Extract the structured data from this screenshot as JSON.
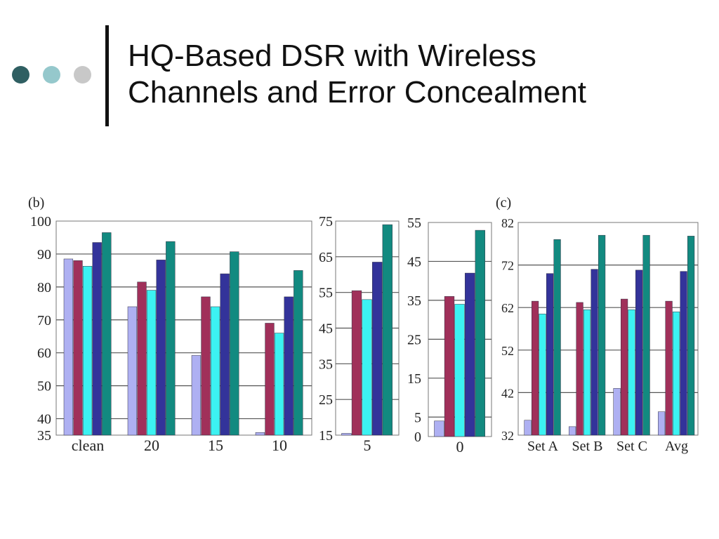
{
  "slide": {
    "title_line1": "HQ-Based DSR with Wireless",
    "title_line2": "Channels and Error Concealment",
    "decor_colors": [
      "#2f5f62",
      "#95c8cc",
      "#c8c8c8"
    ]
  },
  "series_colors": [
    "#aeb0f2",
    "#a0305a",
    "#3cf2f2",
    "#33339a",
    "#128a80"
  ],
  "chart_data": [
    {
      "type": "bar",
      "panel_label": "(b)",
      "categories": [
        "clean",
        "20",
        "15",
        "10"
      ],
      "ylim": [
        35,
        100
      ],
      "yticks": [
        35,
        40,
        50,
        60,
        70,
        80,
        90,
        100
      ],
      "series": [
        {
          "values": [
            88.5,
            74,
            59.2,
            35.8
          ]
        },
        {
          "values": [
            88,
            81.5,
            77,
            69
          ]
        },
        {
          "values": [
            86.3,
            79,
            74,
            66
          ]
        },
        {
          "values": [
            93.5,
            88.2,
            84,
            77
          ]
        },
        {
          "values": [
            96.5,
            93.8,
            90.7,
            85
          ]
        }
      ]
    },
    {
      "type": "bar",
      "panel_label": "",
      "categories": [
        "5"
      ],
      "ylim": [
        15,
        75
      ],
      "yticks": [
        15,
        25,
        35,
        45,
        55,
        65,
        75
      ],
      "series": [
        {
          "values": [
            15.5
          ]
        },
        {
          "values": [
            55.5
          ]
        },
        {
          "values": [
            53
          ]
        },
        {
          "values": [
            63.5
          ]
        },
        {
          "values": [
            74
          ]
        }
      ]
    },
    {
      "type": "bar",
      "panel_label": "",
      "categories": [
        "0"
      ],
      "ylim": [
        0,
        55
      ],
      "yticks": [
        0,
        5,
        15,
        25,
        35,
        45,
        55
      ],
      "series": [
        {
          "values": [
            4
          ]
        },
        {
          "values": [
            36
          ]
        },
        {
          "values": [
            34
          ]
        },
        {
          "values": [
            42
          ]
        },
        {
          "values": [
            53
          ]
        }
      ]
    },
    {
      "type": "bar",
      "panel_label": "(c)",
      "categories": [
        "Set A",
        "Set B",
        "Set C",
        "Avg"
      ],
      "ylim": [
        32,
        82
      ],
      "yticks": [
        32,
        42,
        52,
        62,
        72,
        82
      ],
      "series": [
        {
          "values": [
            35.5,
            34,
            43,
            37.5
          ]
        },
        {
          "values": [
            63.5,
            63.2,
            64,
            63.5
          ]
        },
        {
          "values": [
            60.5,
            61.5,
            61.5,
            61
          ]
        },
        {
          "values": [
            70,
            71,
            70.8,
            70.5
          ]
        },
        {
          "values": [
            78,
            79,
            79,
            78.8
          ]
        }
      ]
    }
  ]
}
